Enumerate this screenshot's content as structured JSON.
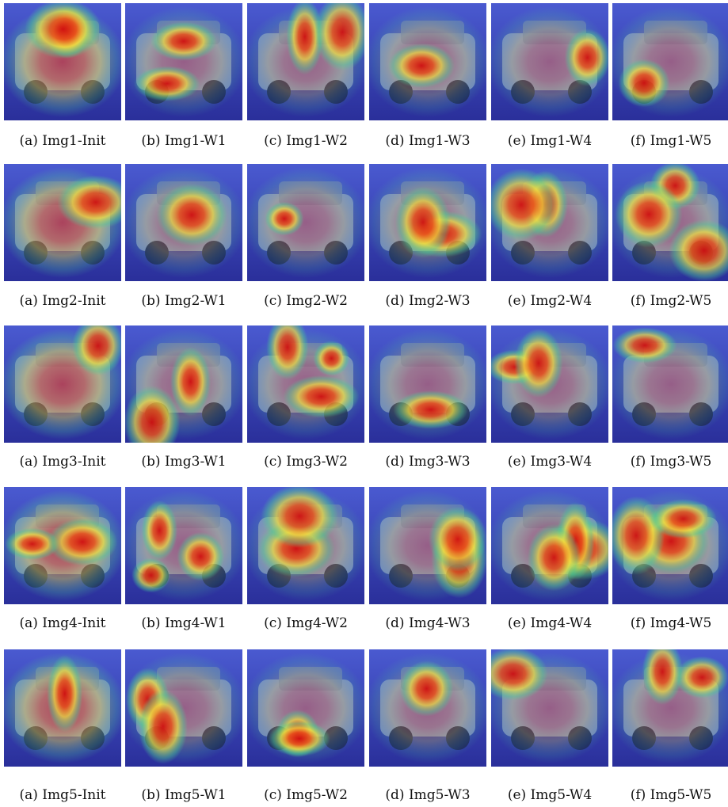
{
  "figure": {
    "rows": [
      {
        "captions": [
          "(a) Img1-Init",
          "(b) Img1-W1",
          "(c) Img1-W2",
          "(d) Img1-W3",
          "(e) Img1-W4",
          "(f) Img1-W5"
        ]
      },
      {
        "captions": [
          "(a) Img2-Init",
          "(b) Img2-W1",
          "(c) Img2-W2",
          "(d) Img2-W3",
          "(e) Img2-W4",
          "(f) Img2-W5"
        ]
      },
      {
        "captions": [
          "(a) Img3-Init",
          "(b) Img3-W1",
          "(c) Img3-W2",
          "(d) Img3-W3",
          "(e) Img3-W4",
          "(f) Img3-W5"
        ]
      },
      {
        "captions": [
          "(a) Img4-Init",
          "(b) Img4-W1",
          "(c) Img4-W2",
          "(d) Img4-W3",
          "(e) Img4-W4",
          "(f) Img4-W5"
        ]
      },
      {
        "captions": [
          "(a) Img5-Init",
          "(b) Img5-W1",
          "(c) Img5-W2",
          "(d) Img5-W3",
          "(e) Img5-W4",
          "(f) Img5-W5"
        ]
      }
    ]
  }
}
